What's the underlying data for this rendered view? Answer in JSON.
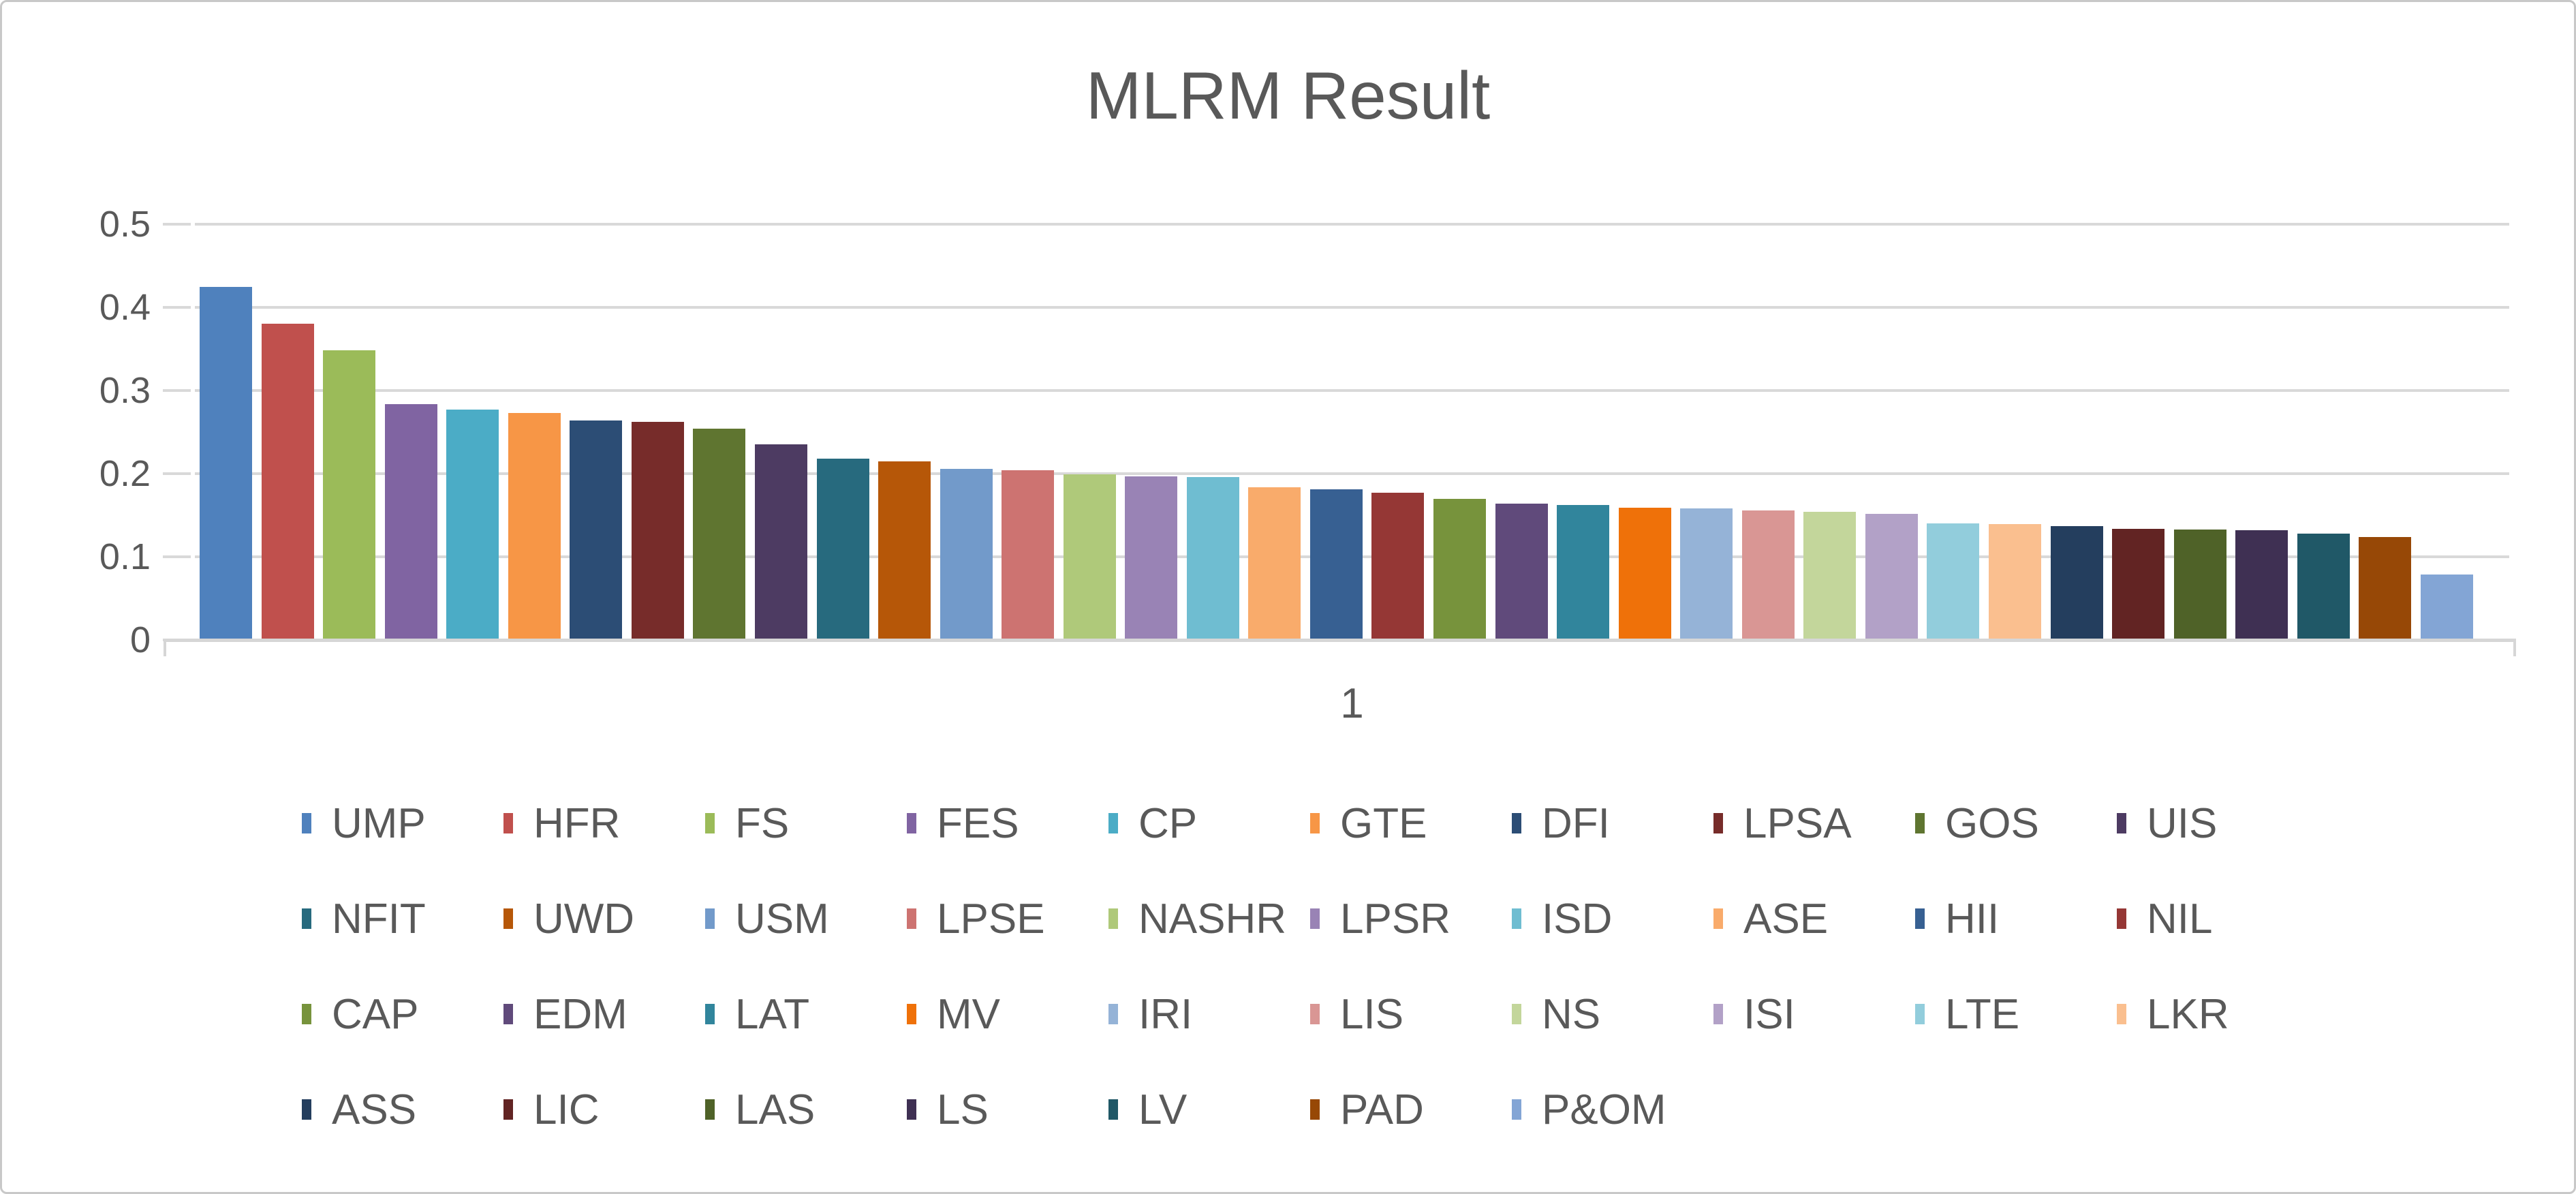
{
  "chart_data": {
    "type": "bar",
    "title": "MLRM Result",
    "categories": [
      "1"
    ],
    "xlabel": "1",
    "ylabel": "",
    "ylim": [
      0,
      0.5
    ],
    "grid": true,
    "legend_position": "bottom",
    "y_ticks": [
      {
        "label": "0.5",
        "value": 0.5
      },
      {
        "label": "0.4",
        "value": 0.4
      },
      {
        "label": "0.3",
        "value": 0.3
      },
      {
        "label": "0.2",
        "value": 0.2
      },
      {
        "label": "0.1",
        "value": 0.1
      },
      {
        "label": "0",
        "value": 0.0
      }
    ],
    "series": [
      {
        "name": "UMP",
        "value": 0.425,
        "color": "#4F81BD"
      },
      {
        "name": "HFR",
        "value": 0.38,
        "color": "#C0504D"
      },
      {
        "name": "FS",
        "value": 0.348,
        "color": "#9BBB59"
      },
      {
        "name": "FES",
        "value": 0.284,
        "color": "#8064A2"
      },
      {
        "name": "CP",
        "value": 0.277,
        "color": "#4BACC6"
      },
      {
        "name": "GTE",
        "value": 0.273,
        "color": "#F79646"
      },
      {
        "name": "DFI",
        "value": 0.264,
        "color": "#2C4D75"
      },
      {
        "name": "LPSA",
        "value": 0.262,
        "color": "#772C2A"
      },
      {
        "name": "GOS",
        "value": 0.254,
        "color": "#5F7530"
      },
      {
        "name": "UIS",
        "value": 0.235,
        "color": "#4D3B62"
      },
      {
        "name": "NFIT",
        "value": 0.218,
        "color": "#276A7E"
      },
      {
        "name": "UWD",
        "value": 0.215,
        "color": "#B65708"
      },
      {
        "name": "USM",
        "value": 0.206,
        "color": "#729ACA"
      },
      {
        "name": "LPSE",
        "value": 0.204,
        "color": "#CD7371"
      },
      {
        "name": "NASHR",
        "value": 0.199,
        "color": "#AFC97A"
      },
      {
        "name": "LPSR",
        "value": 0.197,
        "color": "#9983B5"
      },
      {
        "name": "ISD",
        "value": 0.196,
        "color": "#6FBDD1"
      },
      {
        "name": "ASE",
        "value": 0.184,
        "color": "#F9AB6B"
      },
      {
        "name": "HII",
        "value": 0.181,
        "color": "#376092"
      },
      {
        "name": "NIL",
        "value": 0.177,
        "color": "#953735"
      },
      {
        "name": "CAP",
        "value": 0.17,
        "color": "#77933C"
      },
      {
        "name": "EDM",
        "value": 0.164,
        "color": "#604A7B"
      },
      {
        "name": "LAT",
        "value": 0.162,
        "color": "#31859C"
      },
      {
        "name": "MV",
        "value": 0.159,
        "color": "#EF7109"
      },
      {
        "name": "IRI",
        "value": 0.158,
        "color": "#95B3D7"
      },
      {
        "name": "LIS",
        "value": 0.156,
        "color": "#D99694"
      },
      {
        "name": "NS",
        "value": 0.154,
        "color": "#C3D69B"
      },
      {
        "name": "ISI",
        "value": 0.152,
        "color": "#B2A1C7"
      },
      {
        "name": "LTE",
        "value": 0.14,
        "color": "#92CDDC"
      },
      {
        "name": "LKR",
        "value": 0.139,
        "color": "#FABF8F"
      },
      {
        "name": "ASS",
        "value": 0.137,
        "color": "#243E5E"
      },
      {
        "name": "LIC",
        "value": 0.134,
        "color": "#622423"
      },
      {
        "name": "LAS",
        "value": 0.133,
        "color": "#4F6228"
      },
      {
        "name": "LS",
        "value": 0.132,
        "color": "#3F3053"
      },
      {
        "name": "LV",
        "value": 0.128,
        "color": "#205867"
      },
      {
        "name": "PAD",
        "value": 0.124,
        "color": "#974806"
      },
      {
        "name": "P&OM",
        "value": 0.079,
        "color": "#83A5D5"
      }
    ]
  },
  "colors": {
    "text": "#595959",
    "gridline": "#D9D9D9",
    "axis_line": "#D6D6D6",
    "background": "#FFFFFF",
    "canvas_border": "#C8C8C8"
  }
}
